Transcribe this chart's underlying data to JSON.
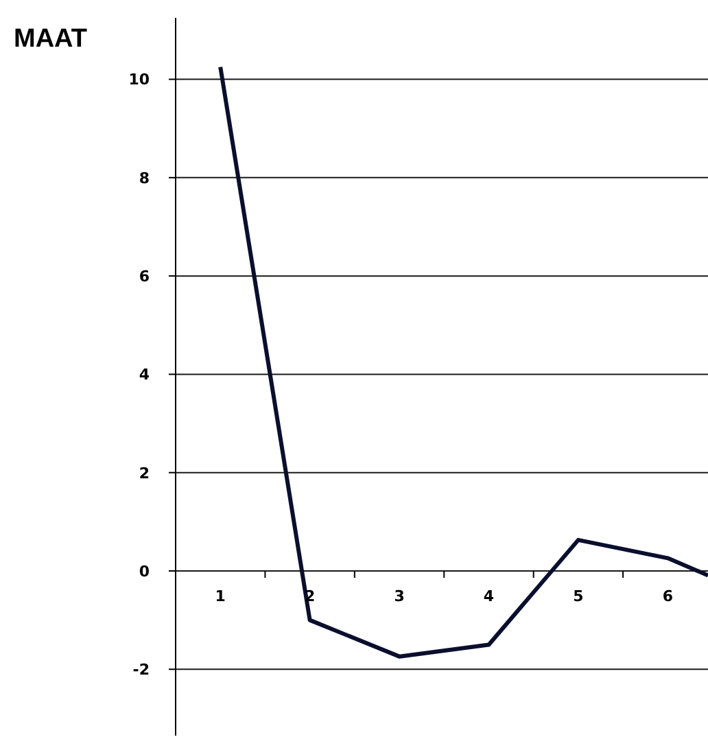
{
  "chart_data": {
    "type": "line",
    "ylabel": "MAAT",
    "x": [
      1,
      2,
      3,
      4,
      5,
      6,
      6.45
    ],
    "series": [
      {
        "color": "#0a0f2e",
        "values": [
          10.25,
          -1.0,
          -1.74,
          -1.5,
          0.63,
          0.26,
          -0.09
        ]
      }
    ],
    "xlim": [
      0.5,
      6.45
    ],
    "xticks": [
      {
        "value": 1,
        "label": "1"
      },
      {
        "value": 1.5,
        "label": null
      },
      {
        "value": 2,
        "label": "2"
      },
      {
        "value": 2.5,
        "label": null
      },
      {
        "value": 3,
        "label": "3"
      },
      {
        "value": 3.5,
        "label": null
      },
      {
        "value": 4,
        "label": "4"
      },
      {
        "value": 4.5,
        "label": null
      },
      {
        "value": 5,
        "label": "5"
      },
      {
        "value": 5.5,
        "label": null
      },
      {
        "value": 6,
        "label": "6"
      }
    ],
    "ylim": [
      -3.35,
      11.25
    ],
    "yticks": [
      -2,
      0,
      2,
      4,
      6,
      8,
      10
    ],
    "grid": "y",
    "marker": "none",
    "line_style": "solid",
    "legend": false
  }
}
